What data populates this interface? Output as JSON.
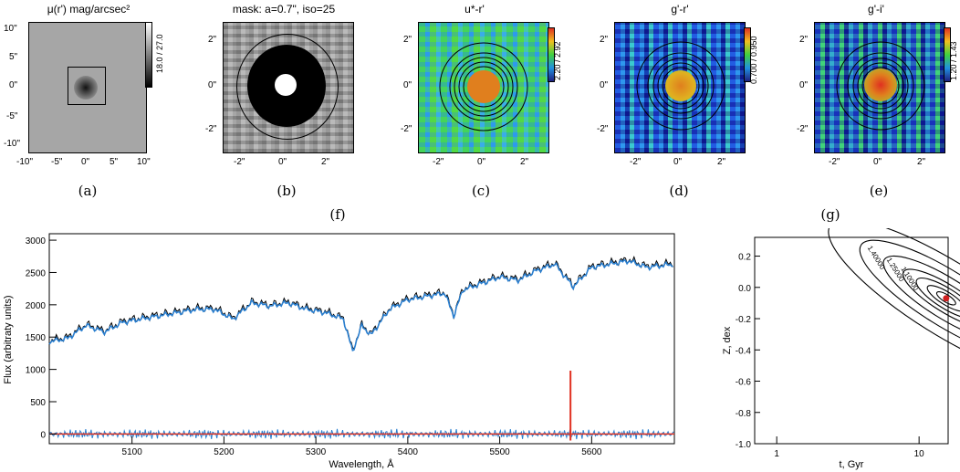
{
  "panels": {
    "a": {
      "title": "μ(r') mag/arcsec²",
      "cbar": "18.0 / 27.0",
      "caption": "(a)",
      "xticks": [
        "-10\"",
        "-5\"",
        "0\"",
        "5\"",
        "10\""
      ],
      "yticks": [
        "10\"",
        "5\"",
        "0\"",
        "-5\"",
        "-10\""
      ]
    },
    "b": {
      "title": "mask: a=0.7\", iso=25",
      "caption": "(b)",
      "xticks": [
        "-2\"",
        "0\"",
        "2\""
      ],
      "yticks": [
        "2\"",
        "0\"",
        "-2\""
      ]
    },
    "c": {
      "title": "u*-r'",
      "cbar": "2.20 / 2.92",
      "caption": "(c)",
      "xticks": [
        "-2\"",
        "0\"",
        "2\""
      ],
      "yticks": [
        "2\"",
        "0\"",
        "-2\""
      ]
    },
    "d": {
      "title": "g'-r'",
      "cbar": "0.700 / 0.950",
      "caption": "(d)",
      "xticks": [
        "-2\"",
        "0\"",
        "2\""
      ],
      "yticks": [
        "2\"",
        "0\"",
        "-2\""
      ]
    },
    "e": {
      "title": "g'-i'",
      "cbar": "1.20 / 1.43",
      "caption": "(e)",
      "xticks": [
        "-2\"",
        "0\"",
        "2\""
      ],
      "yticks": [
        "2\"",
        "0\"",
        "-2\""
      ]
    }
  },
  "captions": {
    "f": "(f)",
    "g": "(g)"
  },
  "chart_data": [
    {
      "type": "line",
      "panel": "f",
      "xlabel": "Wavelength, Å",
      "ylabel": "Flux (arbitraty units)",
      "xlim": [
        5010,
        5690
      ],
      "ylim": [
        -150,
        3100
      ],
      "xticks": [
        5100,
        5200,
        5300,
        5400,
        5500,
        5600
      ],
      "yticks": [
        0,
        500,
        1000,
        1500,
        2000,
        2500,
        3000
      ],
      "series": [
        {
          "role": "observed",
          "color": "#000000",
          "x": [
            5010,
            5030,
            5050,
            5070,
            5090,
            5110,
            5130,
            5150,
            5170,
            5190,
            5210,
            5230,
            5250,
            5270,
            5290,
            5310,
            5330,
            5340,
            5350,
            5360,
            5380,
            5400,
            5420,
            5440,
            5450,
            5460,
            5480,
            5500,
            5520,
            5540,
            5560,
            5580,
            5600,
            5620,
            5640,
            5660,
            5690
          ],
          "y": [
            1450,
            1500,
            1700,
            1600,
            1750,
            1800,
            1850,
            1900,
            1950,
            1950,
            1800,
            2050,
            2000,
            2050,
            1950,
            1900,
            1800,
            1300,
            1700,
            1550,
            1950,
            2100,
            2150,
            2200,
            1850,
            2250,
            2350,
            2450,
            2400,
            2550,
            2650,
            2300,
            2600,
            2650,
            2700,
            2600,
            2650
          ]
        },
        {
          "role": "model",
          "color": "#2a7fd0",
          "x": [
            5010,
            5030,
            5050,
            5070,
            5090,
            5110,
            5130,
            5150,
            5170,
            5190,
            5210,
            5230,
            5250,
            5270,
            5290,
            5310,
            5330,
            5340,
            5350,
            5360,
            5380,
            5400,
            5420,
            5440,
            5450,
            5460,
            5480,
            5500,
            5520,
            5540,
            5560,
            5580,
            5600,
            5620,
            5640,
            5660,
            5690
          ],
          "y": [
            1430,
            1480,
            1680,
            1580,
            1730,
            1780,
            1830,
            1880,
            1930,
            1930,
            1780,
            2030,
            1980,
            2030,
            1930,
            1880,
            1780,
            1280,
            1680,
            1530,
            1930,
            2080,
            2130,
            2180,
            1830,
            2230,
            2330,
            2430,
            2380,
            2530,
            2630,
            2280,
            2580,
            2630,
            2680,
            2580,
            2630
          ]
        },
        {
          "role": "residual",
          "color": "#2a7fd0",
          "x": [
            5010,
            5690
          ],
          "y": [
            0,
            0
          ]
        },
        {
          "role": "residual-zero",
          "color": "#e03020",
          "x": [
            5010,
            5690
          ],
          "y": [
            0,
            0
          ]
        },
        {
          "role": "sky-line",
          "color": "#e03020",
          "x": [
            5577,
            5577
          ],
          "y": [
            -100,
            980
          ]
        }
      ]
    },
    {
      "type": "contour",
      "panel": "g",
      "xlabel": "t, Gyr",
      "ylabel": "Z, dex",
      "xscale": "log",
      "xlim": [
        0.7,
        16
      ],
      "ylim": [
        -1.0,
        0.32
      ],
      "xticks": [
        1,
        10
      ],
      "yticks": [
        0.2,
        0.0,
        -0.2,
        -0.4,
        -0.6,
        -0.8,
        -1.0
      ],
      "levels": [
        "1.40000",
        "1.25000",
        "1.10000"
      ],
      "best_fit": {
        "t": 15.5,
        "Z": -0.07
      }
    }
  ]
}
